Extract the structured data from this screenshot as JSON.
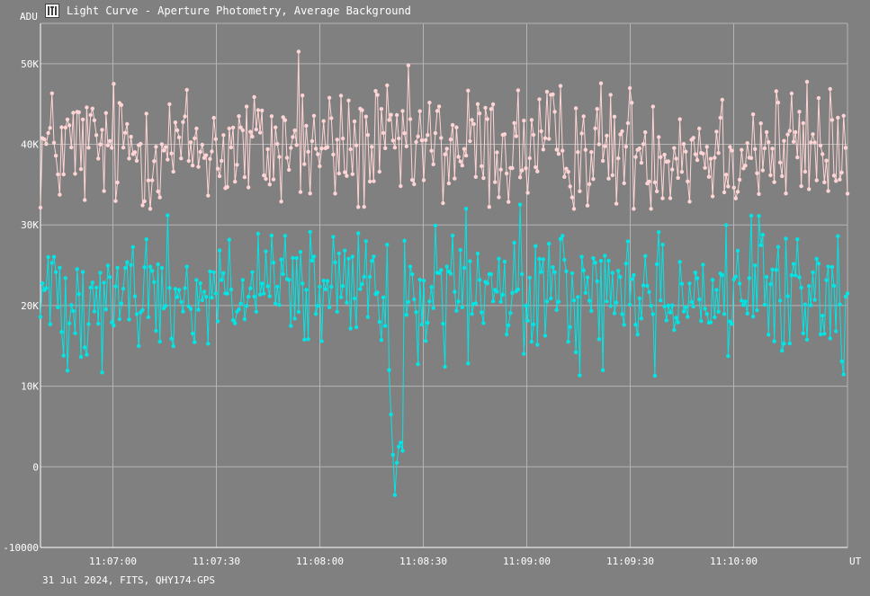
{
  "window": {
    "title": "Light Curve - Aperture Photometry, Average Background"
  },
  "footer": {
    "caption": "31 Jul 2024, FITS, QHY174-GPS"
  },
  "colors": {
    "background": "#808080",
    "grid": "#b4b4b4",
    "axis_text": "#ffffff",
    "series_comparison": "#ffd4d4",
    "series_target": "#00e6e6"
  },
  "chart_data": {
    "type": "line",
    "ylabel": "ADU",
    "xunit": "UT",
    "xlim": [
      "11:06:39",
      "11:10:33"
    ],
    "ylim": [
      -10000,
      55000
    ],
    "yticks": [
      -10000,
      0,
      10000,
      20000,
      30000,
      40000,
      50000
    ],
    "ytick_labels": [
      "-10000",
      "0",
      "10K",
      "20K",
      "30K",
      "40K",
      "50K"
    ],
    "xticks": [
      "11:07:00",
      "11:07:30",
      "11:08:00",
      "11:08:30",
      "11:09:00",
      "11:09:30",
      "11:10:00"
    ],
    "grid": true,
    "legend": "none",
    "markers": true,
    "series": [
      {
        "color": "#ffd4d4",
        "mean": 39500,
        "spread": 4000,
        "points": 420,
        "max": 51500,
        "max_at": "11:07:54",
        "min": 30000
      },
      {
        "color": "#00e6e6",
        "mean": 21500,
        "spread": 4000,
        "points": 420,
        "min": -3500,
        "min_at": "11:08:22",
        "max": 34500
      }
    ]
  }
}
